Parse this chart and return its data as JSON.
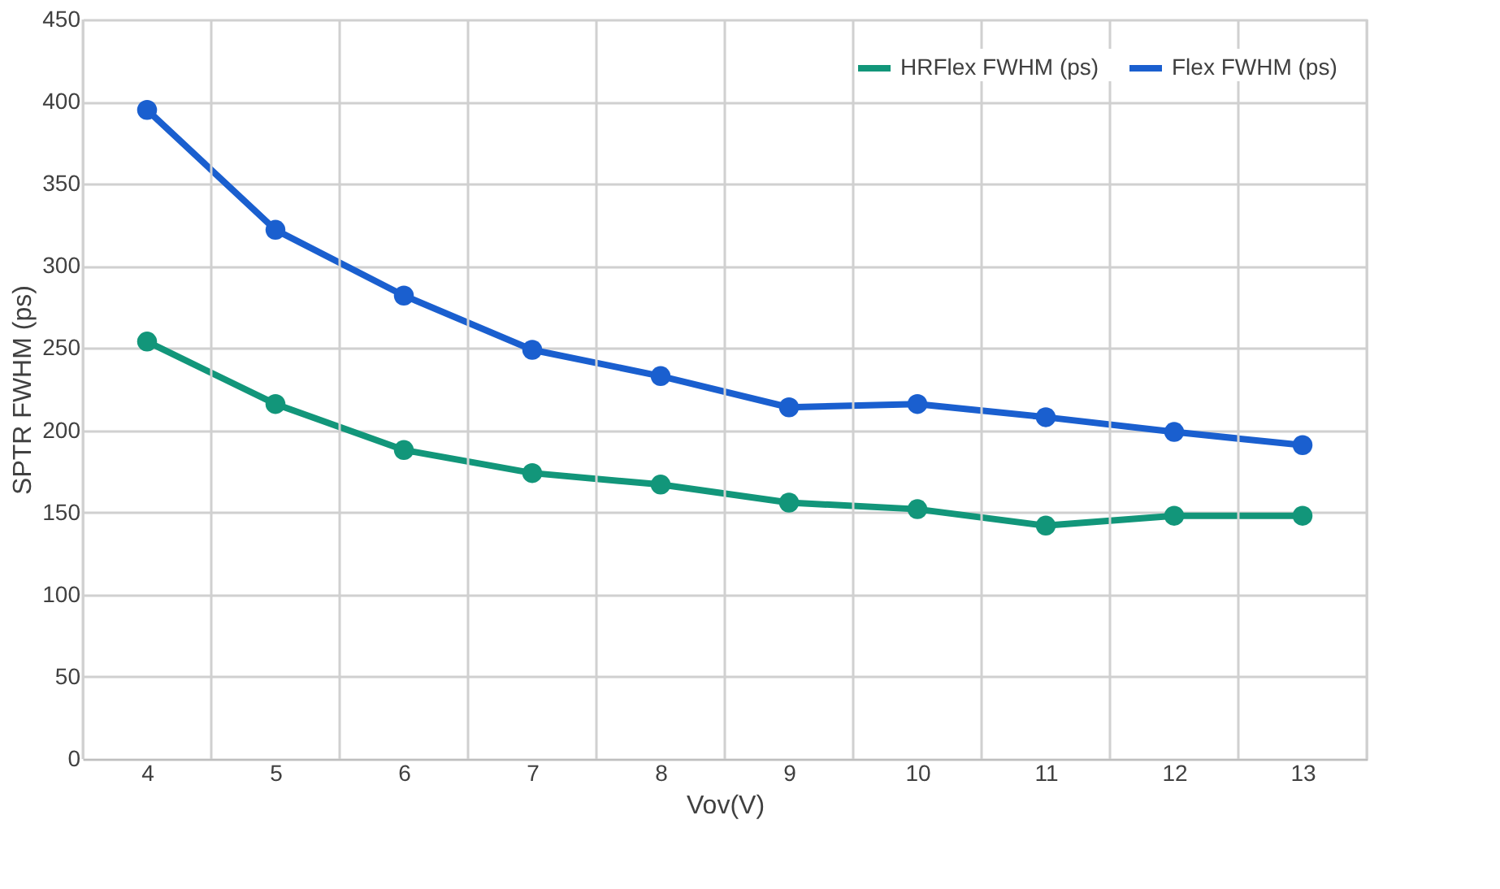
{
  "chart_data": {
    "type": "line",
    "xlabel": "Vov(V)",
    "ylabel": "SPTR FWHM (ps)",
    "categories": [
      "4",
      "5",
      "6",
      "7",
      "8",
      "9",
      "10",
      "11",
      "12",
      "13"
    ],
    "series": [
      {
        "name": "HRFlex FWHM (ps)",
        "color": "#12967a",
        "values": [
          254,
          216,
          188,
          174,
          167,
          156,
          152,
          142,
          148,
          148
        ]
      },
      {
        "name": "Flex FWHM (ps)",
        "color": "#1a5fcf",
        "values": [
          395,
          322,
          282,
          249,
          233,
          214,
          216,
          208,
          199,
          191
        ]
      }
    ],
    "ylim": [
      0,
      450
    ],
    "yticks": [
      0,
      50,
      100,
      150,
      200,
      250,
      300,
      350,
      400,
      450
    ],
    "grid": true,
    "legend": "top right",
    "marker": "circle",
    "line_style": "solid"
  }
}
